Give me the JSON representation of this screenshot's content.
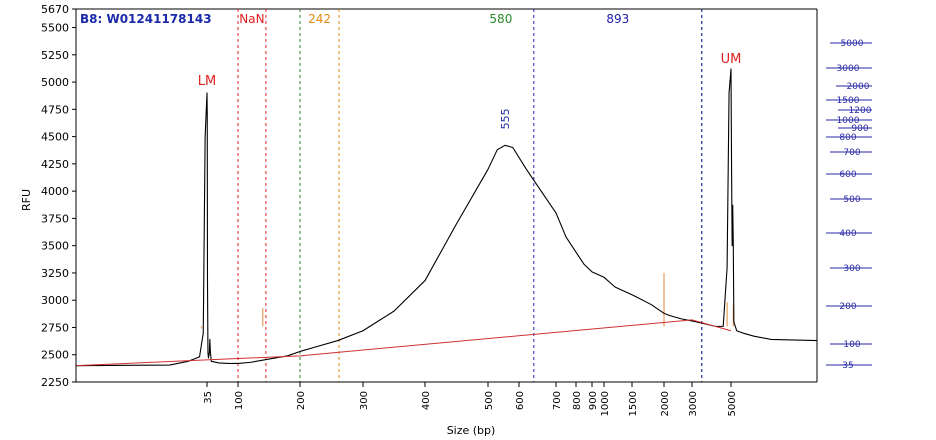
{
  "chart_data": {
    "type": "line",
    "title": "B8: W01241178143",
    "xlabel": "Size (bp)",
    "ylabel": "RFU",
    "ylim": [
      2250,
      5670
    ],
    "y_ticks": [
      2250,
      2500,
      2750,
      3000,
      3250,
      3500,
      3750,
      4000,
      4250,
      4500,
      4750,
      5000,
      5250,
      5500,
      5670
    ],
    "x_ticks": [
      35,
      100,
      200,
      300,
      400,
      500,
      600,
      700,
      800,
      900,
      1000,
      1500,
      2000,
      3000,
      5000
    ],
    "grid": false,
    "peak_labels": [
      {
        "label": "LM",
        "x": 35,
        "y": 4920,
        "color": "#e02020"
      },
      {
        "label": "UM",
        "x": 5000,
        "y": 5120,
        "color": "#e02020"
      }
    ],
    "peak_size_label": {
      "label": "555",
      "x": 555,
      "y": 4420,
      "color": "#1a2a9a"
    },
    "region_markers": [
      {
        "label": "NaN",
        "x_left": 100,
        "x_right": 145,
        "color": "#e02020"
      },
      {
        "label": "242",
        "x_left": 200,
        "x_right": 262,
        "color": "#e08a10"
      },
      {
        "label": "580",
        "x_left": 200,
        "x_right": 3500,
        "color": "#2a8a2a"
      },
      {
        "label": "893",
        "x_left": 640,
        "x_right": 3500,
        "color": "#2020b0"
      }
    ],
    "ladder_labels": [
      "5000",
      "3000",
      "2000",
      "1500",
      "1200",
      "1000",
      "900",
      "800",
      "700",
      "600",
      "500",
      "400",
      "300",
      "200",
      "100",
      "35"
    ],
    "baseline": {
      "color": "#d03030",
      "points": [
        [
          0,
          2400
        ],
        [
          200,
          2490
        ],
        [
          3000,
          2820
        ],
        [
          5000,
          2720
        ]
      ]
    },
    "series": [
      {
        "color": "#000000",
        "points": [
          [
            0,
            2400
          ],
          [
            25,
            2405
          ],
          [
            30,
            2440
          ],
          [
            33,
            2480
          ],
          [
            34,
            2700
          ],
          [
            34.5,
            4500
          ],
          [
            35,
            4900
          ],
          [
            35.5,
            4700
          ],
          [
            36,
            3200
          ],
          [
            37,
            2520
          ],
          [
            38,
            2470
          ],
          [
            40,
            2520
          ],
          [
            41,
            2640
          ],
          [
            42,
            2530
          ],
          [
            44,
            2440
          ],
          [
            60,
            2425
          ],
          [
            80,
            2420
          ],
          [
            100,
            2420
          ],
          [
            120,
            2430
          ],
          [
            150,
            2460
          ],
          [
            180,
            2490
          ],
          [
            200,
            2530
          ],
          [
            230,
            2580
          ],
          [
            260,
            2630
          ],
          [
            300,
            2720
          ],
          [
            350,
            2900
          ],
          [
            400,
            3180
          ],
          [
            450,
            3700
          ],
          [
            500,
            4200
          ],
          [
            530,
            4380
          ],
          [
            555,
            4420
          ],
          [
            580,
            4400
          ],
          [
            620,
            4200
          ],
          [
            660,
            4000
          ],
          [
            700,
            3800
          ],
          [
            750,
            3580
          ],
          [
            800,
            3440
          ],
          [
            850,
            3330
          ],
          [
            900,
            3260
          ],
          [
            1000,
            3210
          ],
          [
            1200,
            3120
          ],
          [
            1500,
            3050
          ],
          [
            1800,
            2960
          ],
          [
            2000,
            2880
          ],
          [
            2200,
            2860
          ],
          [
            2600,
            2830
          ],
          [
            3000,
            2810
          ],
          [
            3500,
            2790
          ],
          [
            4200,
            2760
          ],
          [
            4600,
            2760
          ],
          [
            4800,
            3300
          ],
          [
            4900,
            4900
          ],
          [
            5000,
            5120
          ],
          [
            5100,
            4200
          ],
          [
            5200,
            3500
          ],
          [
            5300,
            3870
          ],
          [
            5400,
            3500
          ],
          [
            5500,
            2800
          ],
          [
            6000,
            2720
          ],
          [
            7000,
            2700
          ],
          [
            9000,
            2670
          ],
          [
            12000,
            2640
          ],
          [
            20000,
            2630
          ]
        ]
      }
    ]
  }
}
